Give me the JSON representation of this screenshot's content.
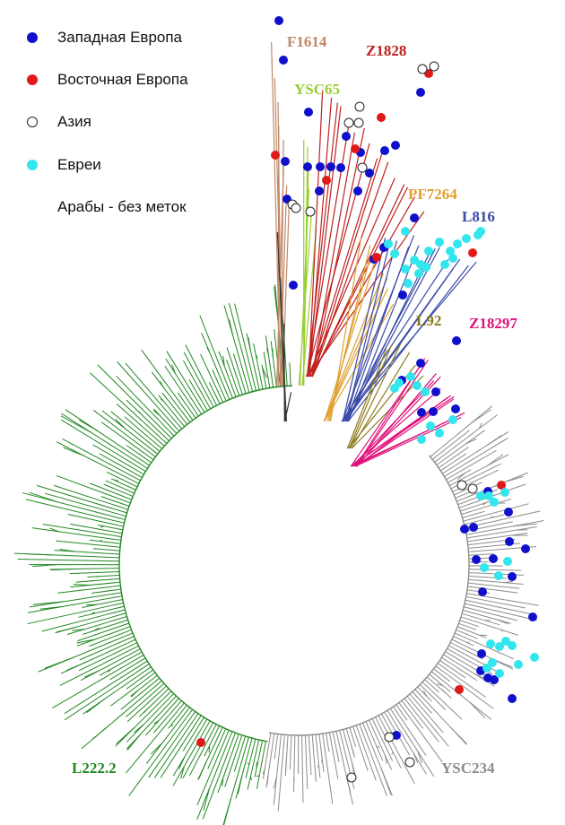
{
  "legend": [
    {
      "label": "Западная Европа",
      "color": "#1010cc",
      "marker": "filled"
    },
    {
      "label": "Восточная Европа",
      "color": "#e01a1a",
      "marker": "filled"
    },
    {
      "label": "Азия",
      "color": "#ffffff",
      "marker": "hollow"
    },
    {
      "label": "Евреи",
      "color": "#33e6ee",
      "marker": "filled"
    },
    {
      "label": "Арабы - без меток",
      "color": "",
      "marker": "none"
    }
  ],
  "clades": [
    {
      "id": "f1614",
      "label": "F1614",
      "color": "#c08868"
    },
    {
      "id": "z1828",
      "label": "Z1828",
      "color": "#c02020"
    },
    {
      "id": "ysc65",
      "label": "YSC65",
      "color": "#9acd32"
    },
    {
      "id": "pf7264",
      "label": "PF7264",
      "color": "#e0a030"
    },
    {
      "id": "l816",
      "label": "L816",
      "color": "#3a4aa8"
    },
    {
      "id": "l92",
      "label": "L92",
      "color": "#8a7a18"
    },
    {
      "id": "z18297",
      "label": "Z18297",
      "color": "#e0107a"
    },
    {
      "id": "l222",
      "label": "L222.2",
      "color": "#228822"
    },
    {
      "id": "ysc234",
      "label": "YSC234",
      "color": "#8c8c8c"
    }
  ]
}
